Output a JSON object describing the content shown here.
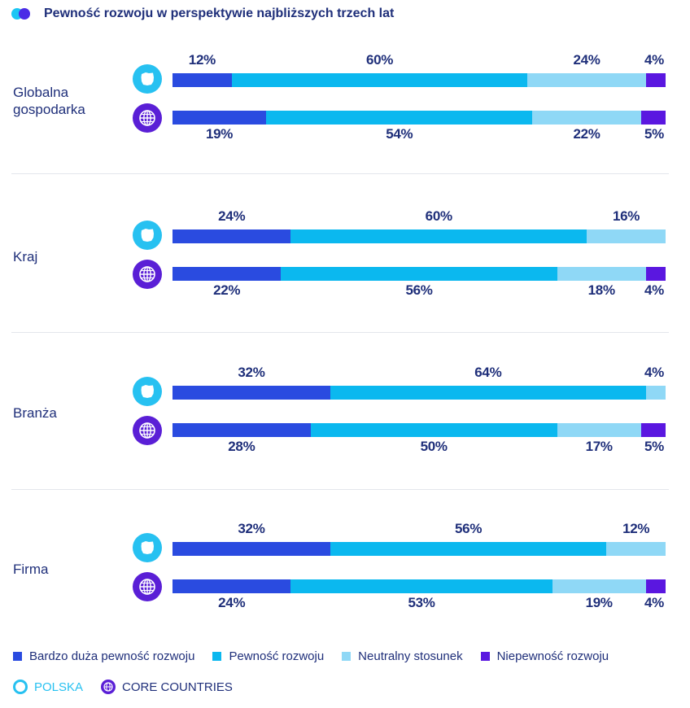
{
  "title": "Pewność rozwoju w perspektywie najbliższych trzech lat",
  "colors": {
    "bardzo_duza": "#2a4be0",
    "pewnosc": "#0bb8ef",
    "neutralny": "#8fd8f6",
    "niepewnosc": "#5a17e0",
    "text": "#1f2f7a"
  },
  "legend": {
    "segments": [
      "Bardzo duża pewność rozwoju",
      "Pewność rozwoju",
      "Neutralny stosunek",
      "Niepewność rozwoju"
    ],
    "polska_label": "POLSKA",
    "core_label": "CORE COUNTRIES"
  },
  "icons": {
    "polska": "poland-map-icon",
    "core": "globe-icon"
  },
  "chart_data": {
    "type": "bar",
    "orientation": "horizontal-stacked-100",
    "categories": [
      "Globalna gospodarka",
      "Kraj",
      "Branża",
      "Firma"
    ],
    "series_names": [
      "Bardzo duża pewność rozwoju",
      "Pewność rozwoju",
      "Neutralny stosunek",
      "Niepewność rozwoju"
    ],
    "groups": [
      {
        "label_lines": [
          "Globalna",
          "gospodarka"
        ],
        "polska": [
          12,
          60,
          24,
          4
        ],
        "core": [
          19,
          54,
          22,
          5
        ]
      },
      {
        "label_lines": [
          "Kraj"
        ],
        "polska": [
          24,
          60,
          16,
          0
        ],
        "core": [
          22,
          56,
          18,
          4
        ]
      },
      {
        "label_lines": [
          "Branża"
        ],
        "polska": [
          32,
          64,
          4,
          0
        ],
        "core": [
          28,
          50,
          17,
          5
        ]
      },
      {
        "label_lines": [
          "Firma"
        ],
        "polska": [
          32,
          56,
          12,
          0
        ],
        "core": [
          24,
          53,
          19,
          4
        ]
      }
    ]
  }
}
